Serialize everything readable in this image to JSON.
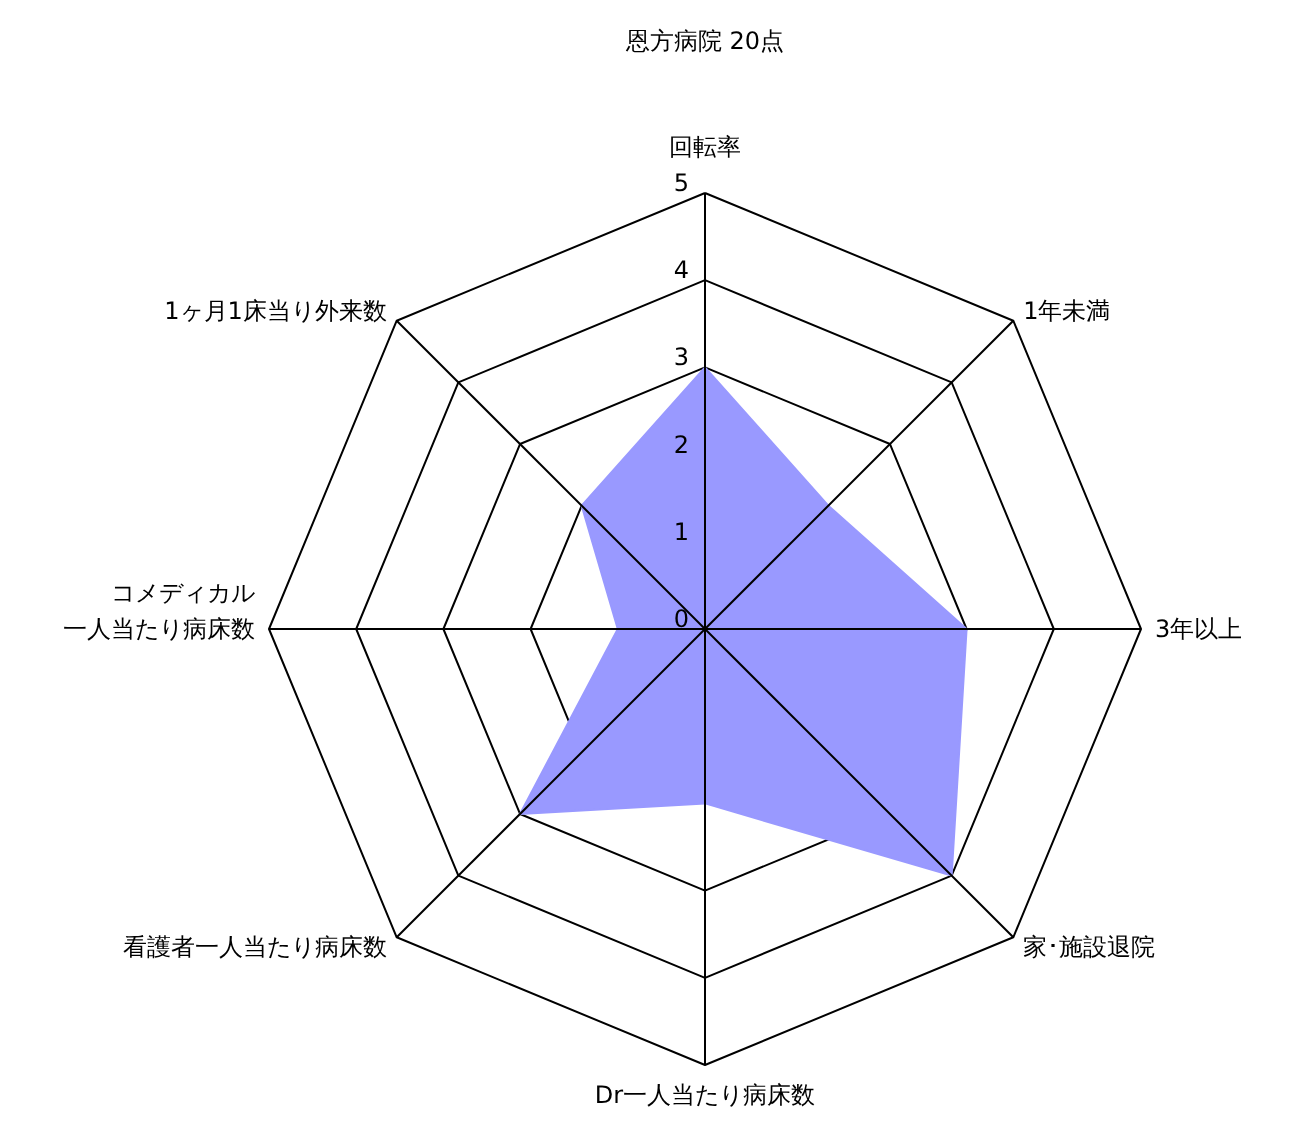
{
  "chart_data": {
    "type": "radar",
    "title": "恩方病院 20点",
    "categories": [
      "回転率",
      "1年未満",
      "3年以上",
      "家･施設退院",
      "Dr一人当たり病床数",
      "看護者一人当たり病床数",
      "コメディカル一人当たり病床数",
      "1ヶ月1床当り外来数"
    ],
    "series": [
      {
        "color": "#9999ff",
        "values": [
          3,
          2,
          3,
          4,
          2,
          3,
          1,
          2
        ]
      }
    ],
    "ylim": [
      0,
      5
    ],
    "yticks": [
      0,
      1,
      2,
      3,
      4,
      5
    ],
    "grid": true
  }
}
